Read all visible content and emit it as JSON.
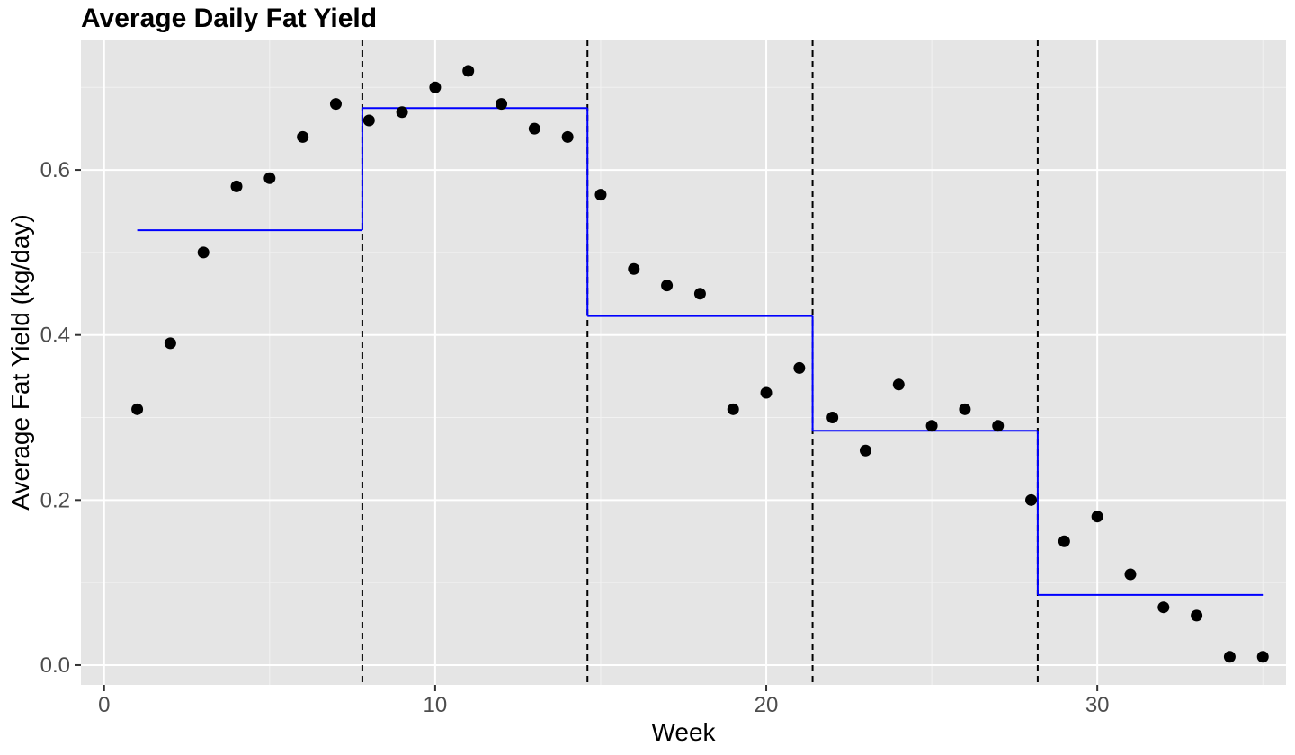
{
  "chart_data": {
    "type": "scatter",
    "title": "Average Daily Fat Yield",
    "xlabel": "Week",
    "ylabel": "Average Fat Yield (kg/day)",
    "xlim": [
      -0.7,
      35.7
    ],
    "ylim": [
      -0.024,
      0.758
    ],
    "x_ticks": [
      0,
      10,
      20,
      30
    ],
    "y_ticks": [
      0.0,
      0.2,
      0.4,
      0.6
    ],
    "x_tick_labels": [
      "0",
      "10",
      "20",
      "30"
    ],
    "y_tick_labels": [
      "0.0",
      "0.2",
      "0.4",
      "0.6"
    ],
    "grid": true,
    "background": "#e5e5e5",
    "point_color": "#000000",
    "step_color": "#0000ff",
    "cut_color": "#000000",
    "points": {
      "x": [
        1,
        2,
        3,
        4,
        5,
        6,
        7,
        8,
        9,
        10,
        11,
        12,
        13,
        14,
        15,
        16,
        17,
        18,
        19,
        20,
        21,
        22,
        23,
        24,
        25,
        26,
        27,
        28,
        29,
        30,
        31,
        32,
        33,
        34,
        35
      ],
      "y": [
        0.31,
        0.39,
        0.5,
        0.58,
        0.59,
        0.64,
        0.68,
        0.66,
        0.67,
        0.7,
        0.72,
        0.68,
        0.65,
        0.64,
        0.57,
        0.48,
        0.46,
        0.45,
        0.31,
        0.33,
        0.36,
        0.3,
        0.26,
        0.34,
        0.29,
        0.31,
        0.29,
        0.2,
        0.15,
        0.18,
        0.11,
        0.07,
        0.06,
        0.01,
        0.01
      ]
    },
    "segments": [
      {
        "x_start": 1.0,
        "x_end": 7.8,
        "y": 0.527
      },
      {
        "x_start": 7.8,
        "x_end": 14.6,
        "y": 0.675
      },
      {
        "x_start": 14.6,
        "x_end": 21.4,
        "y": 0.423
      },
      {
        "x_start": 21.4,
        "x_end": 28.2,
        "y": 0.284
      },
      {
        "x_start": 28.2,
        "x_end": 35.0,
        "y": 0.085
      }
    ],
    "cutpoints": [
      7.8,
      14.6,
      21.4,
      28.2
    ]
  }
}
